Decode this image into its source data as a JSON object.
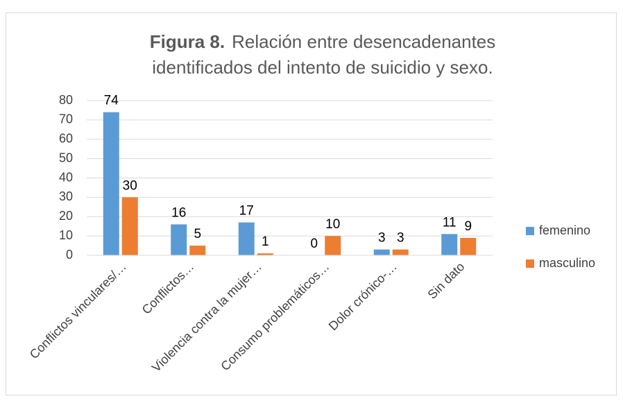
{
  "chart_data": {
    "type": "bar",
    "title_label": "Figura 8.",
    "title_lines": [
      "Relación entre desencadenantes",
      "identificados del intento de suicidio y sexo."
    ],
    "categories": [
      "Conflictos vinculares/…",
      "Conflictos…",
      "Violencia contra la mujer…",
      "Consumo problemáticos…",
      "Dolor crónico-…",
      "Sin dato"
    ],
    "series": [
      {
        "name": "femenino",
        "color": "#5b9bd5",
        "values": [
          74,
          16,
          17,
          0,
          3,
          11
        ]
      },
      {
        "name": "masculino",
        "color": "#ed7d31",
        "values": [
          30,
          5,
          1,
          10,
          3,
          9
        ]
      }
    ],
    "ylim": [
      0,
      80
    ],
    "yticks": [
      0,
      10,
      20,
      30,
      40,
      50,
      60,
      70,
      80
    ],
    "grid": true,
    "legend": "right"
  }
}
